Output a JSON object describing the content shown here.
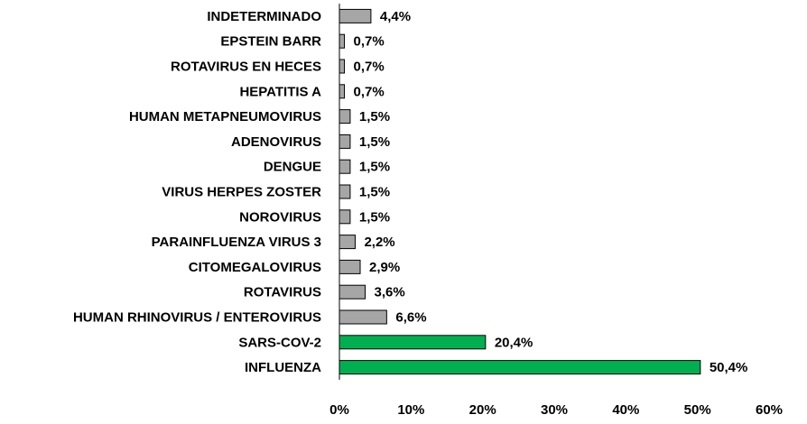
{
  "chart_data": {
    "type": "bar",
    "orientation": "horizontal",
    "categories": [
      "INDETERMINADO",
      "EPSTEIN BARR",
      "ROTAVIRUS EN HECES",
      "HEPATITIS A",
      "HUMAN METAPNEUMOVIRUS",
      "ADENOVIRUS",
      "DENGUE",
      "VIRUS HERPES ZOSTER",
      "NOROVIRUS",
      "PARAINFLUENZA VIRUS 3",
      "CITOMEGALOVIRUS",
      "ROTAVIRUS",
      "HUMAN RHINOVIRUS / ENTEROVIRUS",
      "SARS-COV-2",
      "INFLUENZA"
    ],
    "values": [
      4.4,
      0.7,
      0.7,
      0.7,
      1.5,
      1.5,
      1.5,
      1.5,
      1.5,
      2.2,
      2.9,
      3.6,
      6.6,
      20.4,
      50.4
    ],
    "value_labels": [
      "4,4%",
      "0,7%",
      "0,7%",
      "0,7%",
      "1,5%",
      "1,5%",
      "1,5%",
      "1,5%",
      "1,5%",
      "2,2%",
      "2,9%",
      "3,6%",
      "6,6%",
      "20,4%",
      "50,4%"
    ],
    "highlighted": [
      "SARS-COV-2",
      "INFLUENZA"
    ],
    "colors": {
      "default": "#a6a6a6",
      "highlight": "#00b050"
    },
    "xlim": [
      0,
      60
    ],
    "x_ticks": [
      0,
      10,
      20,
      30,
      40,
      50,
      60
    ],
    "x_tick_labels": [
      "0%",
      "10%",
      "20%",
      "30%",
      "40%",
      "50%",
      "60%"
    ],
    "title": "",
    "xlabel": "",
    "ylabel": "",
    "grid": false,
    "legend": false
  }
}
